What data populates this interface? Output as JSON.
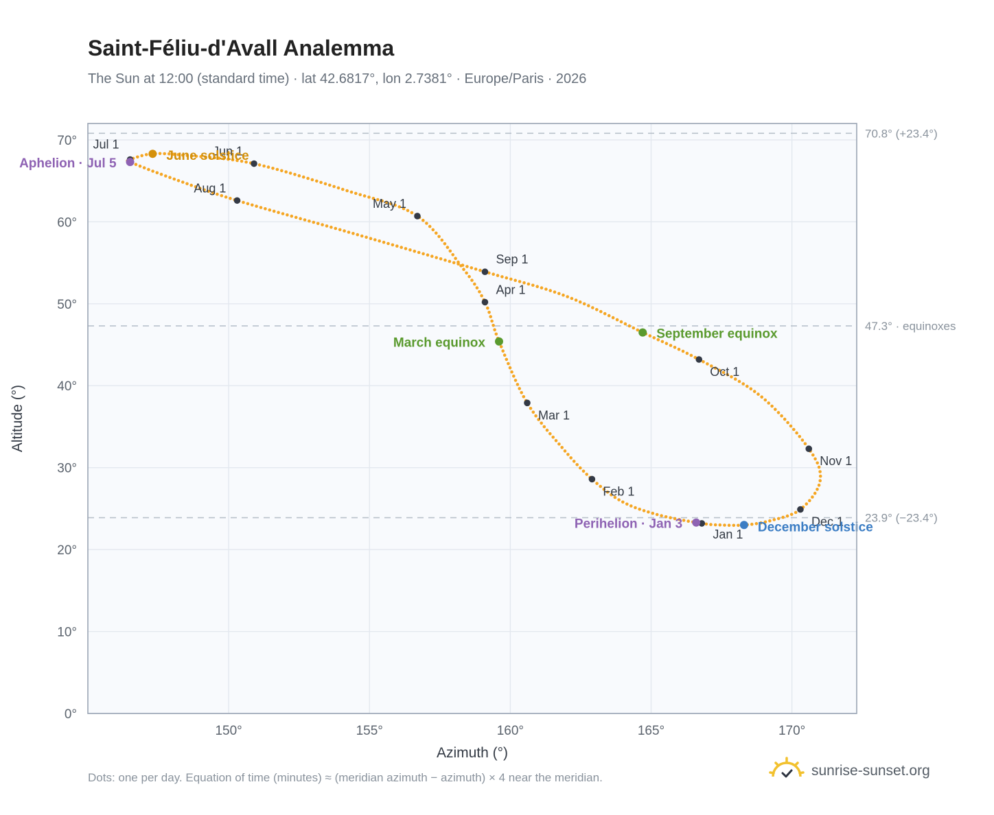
{
  "header": {
    "title": "Saint-Féliu-d'Avall Analemma",
    "subtitle": "The Sun at 12:00 (standard time) · lat 42.6817°, lon 2.7381° · Europe/Paris · 2026"
  },
  "footer": {
    "note": "Dots: one per day. Equation of time (minutes) ≈ (meridian azimuth − azimuth) × 4 near the meridian.",
    "brand": "sunrise-sunset.org"
  },
  "colors": {
    "curve": "#f5a623",
    "month_dot": "#343a46",
    "solstice_june": "#d4900a",
    "solstice_december": "#3b7dc4",
    "equinox": "#5a9a2e",
    "apsis": "#8e62b3",
    "plot_bg": "#f8fafd",
    "grid": "#e3e8ef",
    "refline": "#b8c1cb"
  },
  "chart_data": {
    "type": "scatter",
    "xlabel": "Azimuth (°)",
    "ylabel": "Altitude (°)",
    "xlim": [
      145,
      172.3
    ],
    "ylim": [
      0,
      72
    ],
    "x_ticks": [
      150,
      155,
      160,
      165,
      170
    ],
    "x_tick_labels": [
      "150°",
      "155°",
      "160°",
      "165°",
      "170°"
    ],
    "y_ticks": [
      0,
      10,
      20,
      30,
      40,
      50,
      60,
      70
    ],
    "y_tick_labels": [
      "0°",
      "10°",
      "20°",
      "30°",
      "40°",
      "50°",
      "60°",
      "70°"
    ],
    "grid": true,
    "reference_lines": [
      {
        "y": 70.8,
        "label": "70.8° (+23.4°)"
      },
      {
        "y": 47.3,
        "label": "47.3° · equinoxes"
      },
      {
        "y": 23.9,
        "label": "23.9° (−23.4°)"
      }
    ],
    "months": [
      {
        "label": "Jan 1",
        "x": 166.8,
        "y": 23.2
      },
      {
        "label": "Feb 1",
        "x": 162.9,
        "y": 28.6
      },
      {
        "label": "Mar 1",
        "x": 160.6,
        "y": 37.9
      },
      {
        "label": "Apr 1",
        "x": 159.1,
        "y": 50.2
      },
      {
        "label": "May 1",
        "x": 156.7,
        "y": 60.7
      },
      {
        "label": "Jun 1",
        "x": 150.9,
        "y": 67.1
      },
      {
        "label": "Jul 1",
        "x": 146.5,
        "y": 67.6
      },
      {
        "label": "Aug 1",
        "x": 150.3,
        "y": 62.6
      },
      {
        "label": "Sep 1",
        "x": 159.1,
        "y": 53.9
      },
      {
        "label": "Oct 1",
        "x": 166.7,
        "y": 43.2
      },
      {
        "label": "Nov 1",
        "x": 170.6,
        "y": 32.3
      },
      {
        "label": "Dec 1",
        "x": 170.3,
        "y": 24.9
      }
    ],
    "events": [
      {
        "label": "June solstice",
        "x": 147.3,
        "y": 68.3,
        "kind": "solstice_june"
      },
      {
        "label": "December solstice",
        "x": 168.3,
        "y": 23.0,
        "kind": "solstice_december"
      },
      {
        "label": "March equinox",
        "x": 159.6,
        "y": 45.4,
        "kind": "equinox"
      },
      {
        "label": "September equinox",
        "x": 164.7,
        "y": 46.5,
        "kind": "equinox"
      },
      {
        "label": "Aphelion · Jul 5",
        "x": 146.5,
        "y": 67.3,
        "kind": "apsis"
      },
      {
        "label": "Perihelion · Jan 3",
        "x": 166.6,
        "y": 23.3,
        "kind": "apsis"
      }
    ],
    "path_anchors": [
      [
        166.8,
        23.2
      ],
      [
        165.3,
        24.2
      ],
      [
        164.0,
        25.8
      ],
      [
        162.9,
        28.6
      ],
      [
        161.9,
        32.2
      ],
      [
        160.6,
        37.9
      ],
      [
        159.6,
        45.4
      ],
      [
        159.1,
        50.2
      ],
      [
        158.3,
        54.4
      ],
      [
        156.7,
        60.7
      ],
      [
        154.2,
        63.8
      ],
      [
        150.9,
        67.1
      ],
      [
        148.5,
        68.1
      ],
      [
        147.3,
        68.3
      ],
      [
        146.5,
        67.6
      ],
      [
        146.5,
        67.3
      ],
      [
        148.0,
        65.3
      ],
      [
        150.3,
        62.6
      ],
      [
        154.5,
        58.5
      ],
      [
        159.1,
        53.9
      ],
      [
        162.0,
        50.9
      ],
      [
        164.7,
        46.5
      ],
      [
        166.7,
        43.2
      ],
      [
        168.9,
        38.7
      ],
      [
        170.6,
        32.3
      ],
      [
        171.0,
        28.4
      ],
      [
        170.3,
        24.9
      ],
      [
        169.2,
        23.5
      ],
      [
        168.3,
        23.0
      ],
      [
        167.5,
        23.0
      ],
      [
        166.8,
        23.2
      ]
    ]
  }
}
